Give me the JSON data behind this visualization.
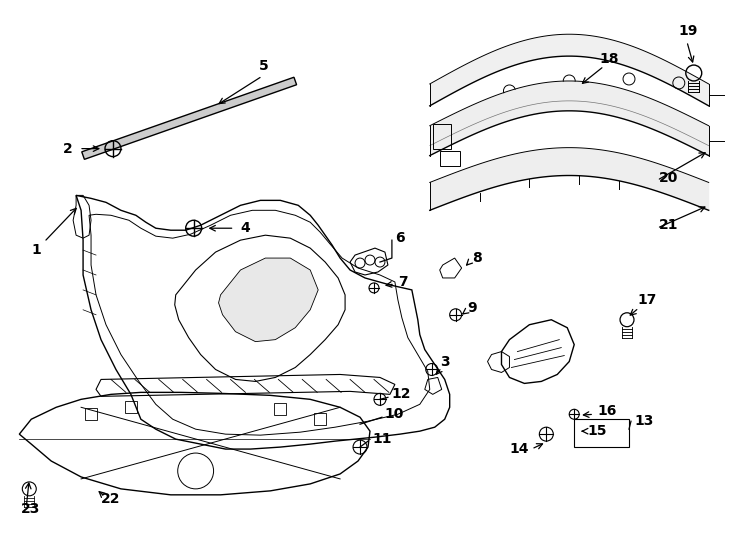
{
  "bg_color": "#ffffff",
  "lc": "#000000",
  "lw": 1.0,
  "fontsize": 10,
  "figsize": [
    7.34,
    5.4
  ],
  "dpi": 100
}
